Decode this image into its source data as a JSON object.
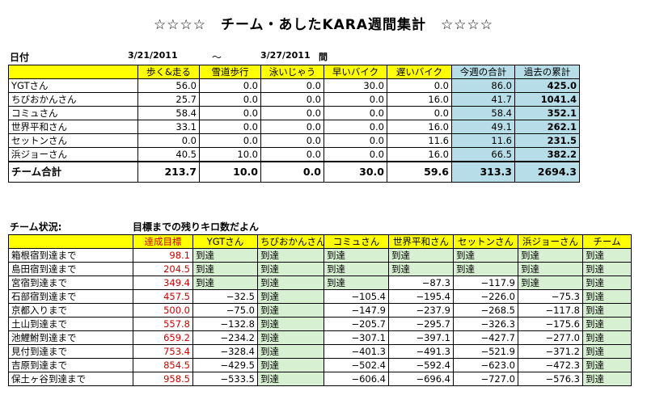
{
  "title": "☆☆☆☆　チーム・あしたKARA週間集計　☆☆☆☆",
  "weekly": {
    "date_label": "日付",
    "date_from": "3/21/2011",
    "tilde": "～",
    "date_to": "3/27/2011",
    "date_suffix": "間",
    "headers": [
      "歩く&走る",
      "雪道歩行",
      "泳いじゃう",
      "早いバイク",
      "遅いバイク",
      "今週の合計",
      "過去の累計"
    ],
    "rows": [
      {
        "name": "YGTさん",
        "values": [
          "56.0",
          "0.0",
          "0.0",
          "30.0",
          "0.0",
          "86.0",
          "425.0"
        ]
      },
      {
        "name": "ちびおかんさん",
        "values": [
          "25.7",
          "0.0",
          "0.0",
          "0.0",
          "16.0",
          "41.7",
          "1041.4"
        ]
      },
      {
        "name": "コミュさん",
        "values": [
          "58.4",
          "0.0",
          "0.0",
          "0.0",
          "0.0",
          "58.4",
          "352.1"
        ]
      },
      {
        "name": "世界平和さん",
        "values": [
          "33.1",
          "0.0",
          "0.0",
          "0.0",
          "16.0",
          "49.1",
          "262.1"
        ]
      },
      {
        "name": "セットンさん",
        "values": [
          "0.0",
          "0.0",
          "0.0",
          "0.0",
          "11.6",
          "11.6",
          "231.5"
        ]
      },
      {
        "name": "浜ジョーさん",
        "values": [
          "40.5",
          "10.0",
          "0.0",
          "0.0",
          "16.0",
          "66.5",
          "382.2"
        ]
      }
    ],
    "total": {
      "name": "チーム合計",
      "values": [
        "213.7",
        "10.0",
        "0.0",
        "30.0",
        "59.6",
        "313.3",
        "2694.3"
      ]
    }
  },
  "status": {
    "label": "チーム状況:",
    "subtitle": "目標までの残りキロ数だよん",
    "headers": [
      "達成目標",
      "YGTさん",
      "ちびおかんさん",
      "コミュさん",
      "世界平和さん",
      "セットンさん",
      "浜ジョーさん",
      "チーム"
    ],
    "rows": [
      {
        "name": "箱根宿到達まで",
        "target": "98.1",
        "cells": [
          "到達",
          "到達",
          "到達",
          "到達",
          "到達",
          "到達",
          "到達"
        ]
      },
      {
        "name": "島田宿到達まで",
        "target": "204.5",
        "cells": [
          "到達",
          "到達",
          "到達",
          "到達",
          "到達",
          "到達",
          "到達"
        ]
      },
      {
        "name": "宮宿到達まで",
        "target": "349.4",
        "cells": [
          "到達",
          "到達",
          "到達",
          "−87.3",
          "−117.9",
          "到達",
          "到達"
        ]
      },
      {
        "name": "石部宿到達まで",
        "target": "457.5",
        "cells": [
          "−32.5",
          "到達",
          "−105.4",
          "−195.4",
          "−226.0",
          "−75.3",
          "到達"
        ]
      },
      {
        "name": "京都入りまで",
        "target": "500.0",
        "cells": [
          "−75.0",
          "到達",
          "−147.9",
          "−237.9",
          "−268.5",
          "−117.8",
          "到達"
        ]
      },
      {
        "name": "土山到達まで",
        "target": "557.8",
        "cells": [
          "−132.8",
          "到達",
          "−205.7",
          "−295.7",
          "−326.3",
          "−175.6",
          "到達"
        ]
      },
      {
        "name": "池鯉鮒到達まで",
        "target": "659.2",
        "cells": [
          "−234.2",
          "到達",
          "−307.1",
          "−397.1",
          "−427.7",
          "−277.0",
          "到達"
        ]
      },
      {
        "name": "見付到達まで",
        "target": "753.4",
        "cells": [
          "−328.4",
          "到達",
          "−401.3",
          "−491.3",
          "−521.9",
          "−371.2",
          "到達"
        ]
      },
      {
        "name": "吉原到達まで",
        "target": "854.5",
        "cells": [
          "−429.5",
          "到達",
          "−502.4",
          "−592.4",
          "−623.0",
          "−472.3",
          "到達"
        ]
      },
      {
        "name": "保土ヶ谷到達まで",
        "target": "958.5",
        "cells": [
          "−533.5",
          "到達",
          "−606.4",
          "−696.4",
          "−727.0",
          "−576.3",
          "到達"
        ]
      }
    ]
  },
  "colors": {
    "yellow": "#ffff00",
    "blue": "#b7dee8",
    "green": "#d8f0d2",
    "target_red": "#cc0000"
  }
}
